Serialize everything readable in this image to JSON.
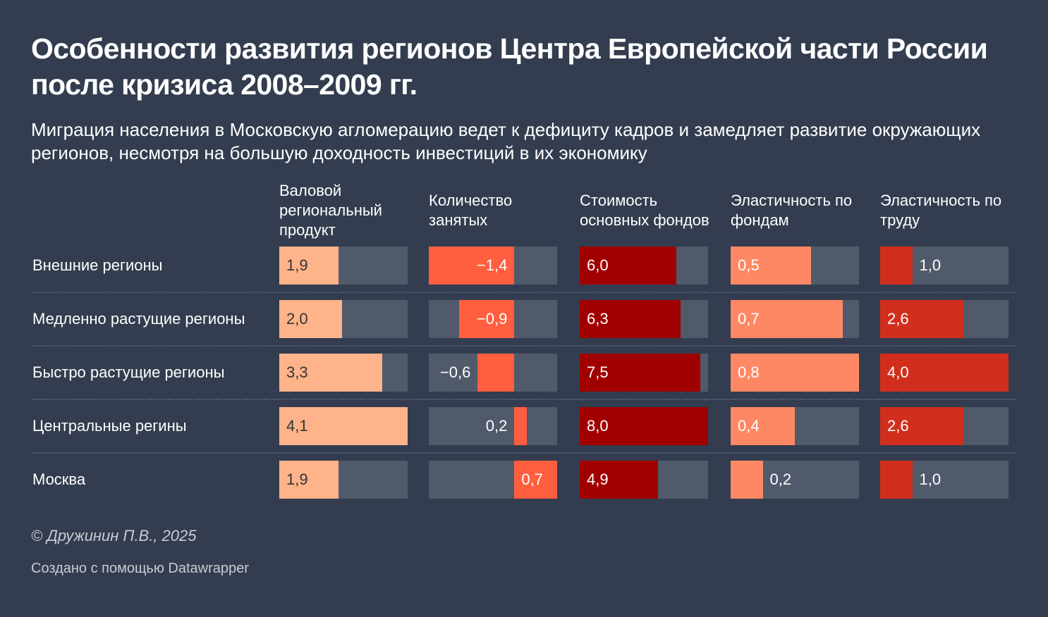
{
  "title": "Особенности развития регионов Центра Европейской части России после кризиса 2008–2009 гг.",
  "subtitle": "Миграция населения в Московскую агломерацию ведет к дефициту кадров и замедляет развитие окружающих регионов, несмотря на большую доходность инвестиций в их экономику",
  "footer": {
    "credit": "© Дружинин П.В., 2025",
    "made_with": "Создано с помощью Datawrapper"
  },
  "chart_data": {
    "type": "table",
    "title": "Особенности развития регионов Центра Европейской части России после кризиса 2008–2009 гг.",
    "rows": [
      "Внешние регионы",
      "Медленно растущие регионы",
      "Быстро растущие регионы",
      "Центральные регины",
      "Москва"
    ],
    "columns": [
      {
        "name": "Валовой региональный продукт",
        "color": "#ffb38a",
        "text_color": "#333333",
        "min": 0,
        "max": 4.1,
        "values": [
          1.9,
          2.0,
          3.3,
          4.1,
          1.9
        ],
        "labels": [
          "1,9",
          "2,0",
          "3,3",
          "4,1",
          "1,9"
        ]
      },
      {
        "name": "Количество занятых",
        "color": "#ff5e3f",
        "text_color": "#ffffff",
        "min": -1.4,
        "max": 0.7,
        "values": [
          -1.4,
          -0.9,
          -0.6,
          0.2,
          0.7
        ],
        "labels": [
          "−1,4",
          "−0,9",
          "−0,6",
          "0,2",
          "0,7"
        ]
      },
      {
        "name": "Стоимость основных фондов",
        "color": "#a10000",
        "text_color": "#ffffff",
        "min": 0,
        "max": 8.0,
        "values": [
          6.0,
          6.3,
          7.5,
          8.0,
          4.9
        ],
        "labels": [
          "6,0",
          "6,3",
          "7,5",
          "8,0",
          "4,9"
        ]
      },
      {
        "name": "Эластичность по фондам",
        "color": "#ff8864",
        "text_color": "#ffffff",
        "min": 0,
        "max": 0.8,
        "values": [
          0.5,
          0.7,
          0.8,
          0.4,
          0.2
        ],
        "labels": [
          "0,5",
          "0,7",
          "0,8",
          "0,4",
          "0,2"
        ]
      },
      {
        "name": "Эластичность по труду",
        "color": "#d12e1d",
        "text_color": "#ffffff",
        "min": 0,
        "max": 4.0,
        "values": [
          1.0,
          2.6,
          4.0,
          2.6,
          1.0
        ],
        "labels": [
          "1,0",
          "2,6",
          "4,0",
          "2,6",
          "1,0"
        ]
      }
    ]
  }
}
